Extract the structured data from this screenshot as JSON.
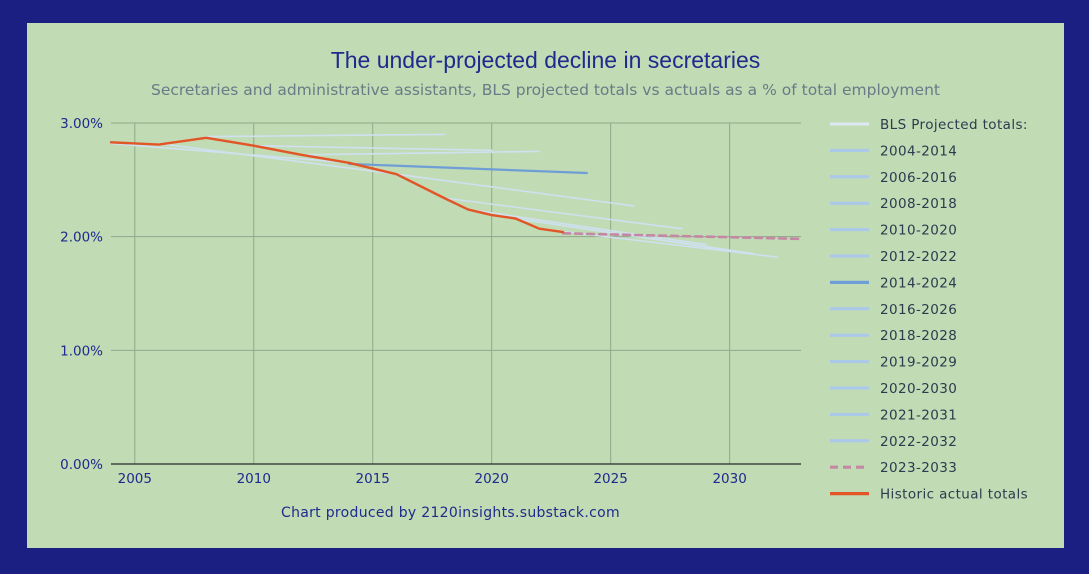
{
  "chart_data": {
    "type": "line",
    "title": "The under-projected decline in secretaries",
    "subtitle": "Secretaries and administrative assistants, BLS projected totals vs actuals as a % of total employment",
    "credit": "Chart produced by 2120insights.substack.com",
    "xlabel": "",
    "ylabel": "",
    "xlim": [
      2004,
      2033
    ],
    "ylim": [
      0,
      3.0
    ],
    "x_ticks": [
      2005,
      2010,
      2015,
      2020,
      2025,
      2030
    ],
    "y_ticks": [
      0,
      1,
      2,
      3
    ],
    "y_tick_labels": [
      "0.00%",
      "1.00%",
      "2.00%",
      "3.00%"
    ],
    "grid": true,
    "legend_header": "BLS Projected totals:",
    "legend_position": "right",
    "colors": {
      "frame": "#1c1f82",
      "background": "#c1dbb5",
      "faint_projection": "#cfe0ef",
      "projection": "#a9c8ea",
      "highlight_projection": "#6f9ed6",
      "latest_projection": "#c488a4",
      "actual": "#e25526",
      "grid": "#8fa88a",
      "text": "#1e2a8c"
    },
    "series": [
      {
        "name": "2004-2014",
        "style": "faint",
        "points": [
          [
            2004,
            2.82
          ],
          [
            2014,
            2.65
          ]
        ]
      },
      {
        "name": "2006-2016",
        "style": "faint",
        "points": [
          [
            2006,
            2.82
          ],
          [
            2016,
            2.55
          ]
        ]
      },
      {
        "name": "2008-2018",
        "style": "faint",
        "points": [
          [
            2008,
            2.88
          ],
          [
            2018,
            2.9
          ]
        ]
      },
      {
        "name": "2010-2020",
        "style": "faint",
        "points": [
          [
            2010,
            2.8
          ],
          [
            2020,
            2.76
          ]
        ]
      },
      {
        "name": "2012-2022",
        "style": "faint",
        "points": [
          [
            2012,
            2.72
          ],
          [
            2022,
            2.75
          ]
        ]
      },
      {
        "name": "2014-2024",
        "style": "highlight",
        "points": [
          [
            2014,
            2.64
          ],
          [
            2024,
            2.56
          ]
        ]
      },
      {
        "name": "2016-2026",
        "style": "faint",
        "points": [
          [
            2016,
            2.55
          ],
          [
            2026,
            2.27
          ]
        ]
      },
      {
        "name": "2018-2028",
        "style": "faint",
        "points": [
          [
            2018,
            2.34
          ],
          [
            2028,
            2.07
          ]
        ]
      },
      {
        "name": "2019-2029",
        "style": "faint",
        "points": [
          [
            2019,
            2.24
          ],
          [
            2029,
            1.93
          ]
        ]
      },
      {
        "name": "2020-2030",
        "style": "faint",
        "points": [
          [
            2020,
            2.19
          ],
          [
            2030,
            1.88
          ]
        ]
      },
      {
        "name": "2021-2031",
        "style": "faint",
        "points": [
          [
            2021,
            2.16
          ],
          [
            2031,
            1.85
          ]
        ]
      },
      {
        "name": "2022-2032",
        "style": "faint",
        "points": [
          [
            2022,
            2.07
          ],
          [
            2032,
            1.82
          ]
        ]
      },
      {
        "name": "2023-2033",
        "style": "dashed",
        "points": [
          [
            2023,
            2.03
          ],
          [
            2033,
            1.98
          ]
        ]
      },
      {
        "name": "Historic actual totals",
        "style": "actual",
        "points": [
          [
            2004,
            2.83
          ],
          [
            2006,
            2.81
          ],
          [
            2008,
            2.87
          ],
          [
            2010,
            2.8
          ],
          [
            2012,
            2.72
          ],
          [
            2014,
            2.65
          ],
          [
            2016,
            2.55
          ],
          [
            2018,
            2.34
          ],
          [
            2019,
            2.24
          ],
          [
            2020,
            2.19
          ],
          [
            2021,
            2.16
          ],
          [
            2022,
            2.07
          ],
          [
            2023,
            2.04
          ]
        ]
      }
    ]
  }
}
